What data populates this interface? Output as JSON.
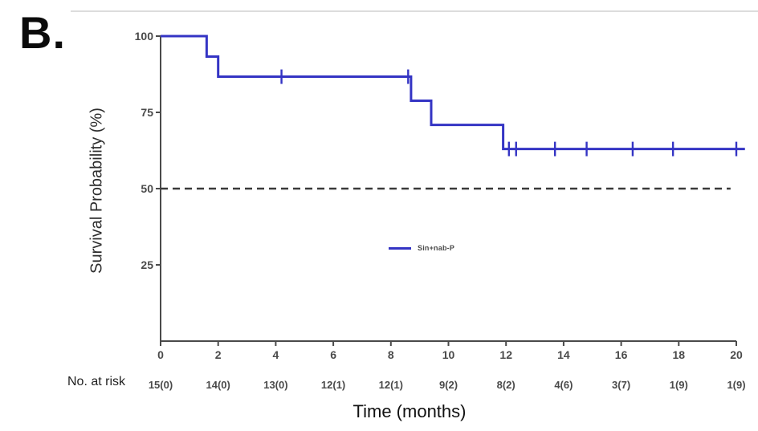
{
  "panel_label": "B.",
  "colors": {
    "curve": "#3434c4",
    "reference_dash": "#3a3a3a",
    "axis": "#4a4a4a",
    "top_rule": "#dcdcdc"
  },
  "chart_data": {
    "type": "line",
    "subtype": "kaplan_meier_step",
    "title": "",
    "xlabel": "Time (months)",
    "ylabel": "Survival Probability (%)",
    "xlim": [
      0,
      20
    ],
    "ylim": [
      0,
      100
    ],
    "x_ticks": [
      0,
      2,
      4,
      6,
      8,
      10,
      12,
      14,
      16,
      18,
      20
    ],
    "y_ticks": [
      25,
      50,
      75,
      100
    ],
    "grid": false,
    "legend": {
      "position": "center-of-plot",
      "entries": [
        {
          "label": "Sin+nab-P",
          "color": "#3434c4"
        }
      ]
    },
    "reference_line": {
      "y": 50,
      "style": "dashed",
      "color": "#3a3a3a"
    },
    "series": [
      {
        "name": "Sin+nab-P",
        "color": "#3434c4",
        "steps": [
          {
            "from": 0,
            "to": 1.6,
            "pct": 100
          },
          {
            "from": 1.6,
            "to": 2.0,
            "pct": 93.3
          },
          {
            "from": 2.0,
            "to": 8.7,
            "pct": 86.7
          },
          {
            "from": 8.7,
            "to": 9.4,
            "pct": 78.8
          },
          {
            "from": 9.4,
            "to": 11.9,
            "pct": 70.9
          },
          {
            "from": 11.9,
            "to": 20.3,
            "pct": 63.0
          }
        ],
        "censor_marks": [
          {
            "t": 4.2,
            "pct": 86.7
          },
          {
            "t": 8.6,
            "pct": 86.7
          },
          {
            "t": 12.1,
            "pct": 63.0
          },
          {
            "t": 12.35,
            "pct": 63.0
          },
          {
            "t": 13.7,
            "pct": 63.0
          },
          {
            "t": 14.8,
            "pct": 63.0
          },
          {
            "t": 16.4,
            "pct": 63.0
          },
          {
            "t": 17.8,
            "pct": 63.0
          },
          {
            "t": 20.0,
            "pct": 63.0
          }
        ]
      }
    ],
    "at_risk": {
      "label": "No. at risk",
      "times": [
        0,
        2,
        4,
        6,
        8,
        10,
        12,
        14,
        16,
        18,
        20
      ],
      "values": [
        "15(0)",
        "14(0)",
        "13(0)",
        "12(1)",
        "12(1)",
        "9(2)",
        "8(2)",
        "4(6)",
        "3(7)",
        "1(9)",
        "1(9)"
      ]
    }
  }
}
